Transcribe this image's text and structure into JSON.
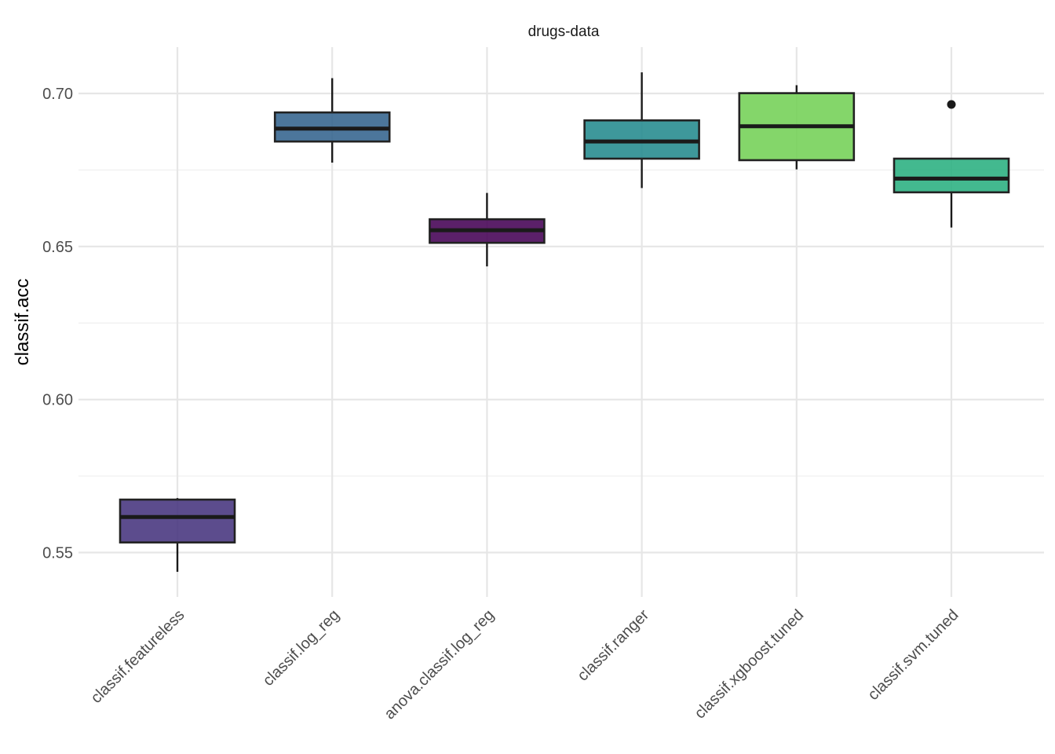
{
  "chart_data": {
    "type": "box",
    "title": "drugs-data",
    "xlabel": "",
    "ylabel": "classif.acc",
    "ylim": [
      0.536,
      0.715
    ],
    "yticks": [
      0.55,
      0.6,
      0.65,
      0.7
    ],
    "ytick_labels": [
      "0.55",
      "0.60",
      "0.65",
      "0.70"
    ],
    "grid": true,
    "legend": "none",
    "categories": [
      "classif.featureless",
      "classif.log_reg",
      "anova.classif.log_reg",
      "classif.ranger",
      "classif.xgboost.tuned",
      "classif.svm.tuned"
    ],
    "boxes": [
      {
        "min": 0.5437,
        "q1": 0.5533,
        "median": 0.5616,
        "q3": 0.5673,
        "max": 0.5678,
        "outliers": [],
        "color": "#45337D"
      },
      {
        "min": 0.6774,
        "q1": 0.6843,
        "median": 0.6885,
        "q3": 0.6938,
        "max": 0.705,
        "outliers": [],
        "color": "#33638D"
      },
      {
        "min": 0.6435,
        "q1": 0.6512,
        "median": 0.6553,
        "q3": 0.6589,
        "max": 0.6675,
        "outliers": [],
        "color": "#440154"
      },
      {
        "min": 0.6691,
        "q1": 0.6787,
        "median": 0.6843,
        "q3": 0.6912,
        "max": 0.7069,
        "outliers": [],
        "color": "#238A8D"
      },
      {
        "min": 0.6752,
        "q1": 0.6782,
        "median": 0.6893,
        "q3": 0.7001,
        "max": 0.7027,
        "outliers": [],
        "color": "#73D055"
      },
      {
        "min": 0.6562,
        "q1": 0.6677,
        "median": 0.6722,
        "q3": 0.6787,
        "max": 0.6787,
        "outliers": [
          0.6964
        ],
        "color": "#29AF7F"
      }
    ]
  }
}
